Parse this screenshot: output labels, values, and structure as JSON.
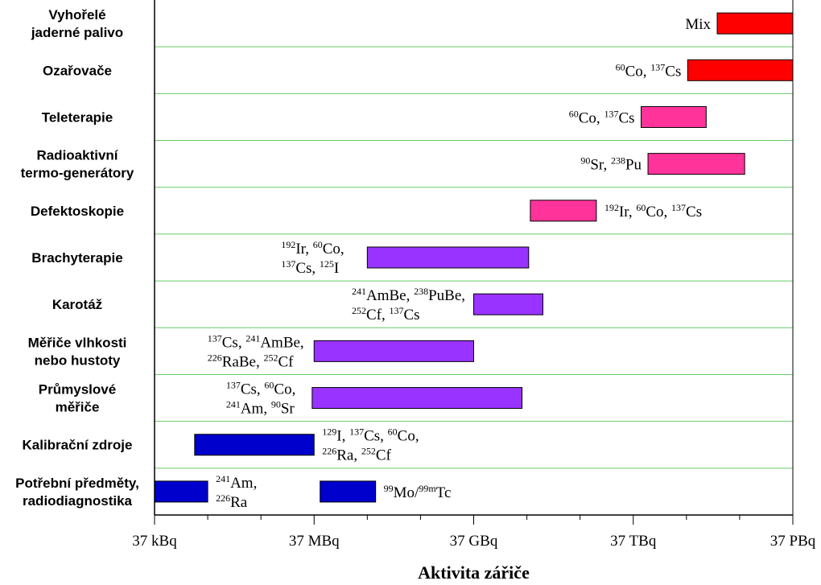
{
  "chart_data": {
    "type": "bar",
    "orientation": "horizontal",
    "xscale": "log",
    "xlabel": "Aktivita zářiče",
    "xticks": [
      "37 kBq",
      "37 MBq",
      "37 GBq",
      "37 TBq",
      "37 PBq"
    ],
    "xlim": [
      "37 kBq",
      "37 PBq"
    ],
    "grid": "horizontal",
    "colors": {
      "red": "#ff0000",
      "pink": "#ff3399",
      "purple": "#9933ff",
      "blue": "#0000cc",
      "grid": "#66cc66"
    },
    "categories": [
      {
        "label": [
          "Vyhořelé",
          "jaderné palivo"
        ],
        "bars": [
          {
            "start": "1.4 PBq",
            "end": "37 PBq",
            "color": "red"
          }
        ],
        "isotopes": [
          {
            "lines": [
              [
                [
                  "",
                  "Mix"
                ]
              ]
            ]
          }
        ]
      },
      {
        "label": [
          "Ozařovače"
        ],
        "bars": [
          {
            "start": "390 TBq",
            "end": "37 PBq",
            "color": "red"
          }
        ],
        "isotopes": [
          {
            "lines": [
              [
                [
                  "60",
                  "Co, "
                ],
                [
                  "137",
                  "Cs"
                ]
              ]
            ]
          }
        ]
      },
      {
        "label": [
          "Teleterapie"
        ],
        "bars": [
          {
            "start": "52 TBq",
            "end": "870 TBq",
            "color": "pink"
          }
        ],
        "isotopes": [
          {
            "lines": [
              [
                [
                  "60",
                  "Co, "
                ],
                [
                  "137",
                  "Cs"
                ]
              ]
            ]
          }
        ]
      },
      {
        "label": [
          "Radioaktivní",
          "termo-generátory"
        ],
        "bars": [
          {
            "start": "70 TBq",
            "end": "4.6 PBq",
            "color": "pink"
          }
        ],
        "isotopes": [
          {
            "lines": [
              [
                [
                  "90",
                  "Sr, "
                ],
                [
                  "238",
                  "Pu"
                ]
              ]
            ]
          }
        ]
      },
      {
        "label": [
          "Defektoskopie"
        ],
        "bars": [
          {
            "start": "430 GBq",
            "end": "7.5 TBq",
            "color": "pink"
          }
        ],
        "isotopes": [
          {
            "lines": [
              [
                [
                  "192",
                  "Ir, "
                ],
                [
                  "60",
                  "Co, "
                ],
                [
                  "137",
                  "Cs"
                ]
              ]
            ]
          }
        ]
      },
      {
        "label": [
          "Brachyterapie"
        ],
        "bars": [
          {
            "start": "370 MBq",
            "end": "400 GBq",
            "color": "purple"
          }
        ],
        "isotopes": [
          {
            "lines": [
              [
                [
                  "192",
                  "Ir, "
                ],
                [
                  "60",
                  "Co,"
                ]
              ],
              [
                [
                  "137",
                  "Cs, "
                ],
                [
                  "125",
                  "I"
                ]
              ]
            ]
          }
        ]
      },
      {
        "label": [
          "Karotáž"
        ],
        "bars": [
          {
            "start": "37 GBq",
            "end": "740 GBq",
            "color": "purple"
          }
        ],
        "isotopes": [
          {
            "lines": [
              [
                [
                  "241",
                  "AmBe, "
                ],
                [
                  "238",
                  "PuBe,"
                ]
              ],
              [
                [
                  "252",
                  "Cf, "
                ],
                [
                  "137",
                  "Cs"
                ]
              ]
            ]
          }
        ]
      },
      {
        "label": [
          "Měřiče vlhkosti",
          "nebo hustoty"
        ],
        "bars": [
          {
            "start": "37 MBq",
            "end": "37 GBq",
            "color": "purple"
          }
        ],
        "isotopes": [
          {
            "lines": [
              [
                [
                  "137",
                  "Cs, "
                ],
                [
                  "241",
                  "AmBe,"
                ]
              ],
              [
                [
                  "226",
                  "RaBe, "
                ],
                [
                  "252",
                  "Cf"
                ]
              ]
            ]
          }
        ]
      },
      {
        "label": [
          "Průmyslové",
          "měřiče"
        ],
        "bars": [
          {
            "start": "34 MBq",
            "end": "300 GBq",
            "color": "purple"
          }
        ],
        "isotopes": [
          {
            "lines": [
              [
                [
                  "137",
                  "Cs, "
                ],
                [
                  "60",
                  "Co,"
                ]
              ],
              [
                [
                  "241",
                  "Am, "
                ],
                [
                  "90",
                  "Sr"
                ]
              ]
            ]
          }
        ]
      },
      {
        "label": [
          "Kalibrační zdroje"
        ],
        "bars": [
          {
            "start": "210 kBq",
            "end": "37 MBq",
            "color": "blue"
          }
        ],
        "isotopes": [
          {
            "lines": [
              [
                [
                  "129",
                  "I, "
                ],
                [
                  "137",
                  "Cs, "
                ],
                [
                  "60",
                  "Co,"
                ]
              ],
              [
                [
                  "226",
                  "Ra, "
                ],
                [
                  "252",
                  "Cf"
                ]
              ]
            ]
          }
        ]
      },
      {
        "label": [
          "Potřební předměty,",
          "radiodiagnostika"
        ],
        "bars": [
          {
            "start": "37 kBq",
            "end": "370 kBq",
            "color": "blue"
          },
          {
            "start": "48 MBq",
            "end": "530 MBq",
            "color": "blue"
          }
        ],
        "isotopes": [
          {
            "lines": [
              [
                [
                  "241",
                  "Am,"
                ]
              ],
              [
                [
                  "226",
                  "Ra"
                ]
              ]
            ]
          },
          {
            "lines": [
              [
                [
                  "99",
                  "Mo/"
                ],
                [
                  "99m",
                  "Tc"
                ]
              ]
            ]
          }
        ]
      }
    ]
  }
}
